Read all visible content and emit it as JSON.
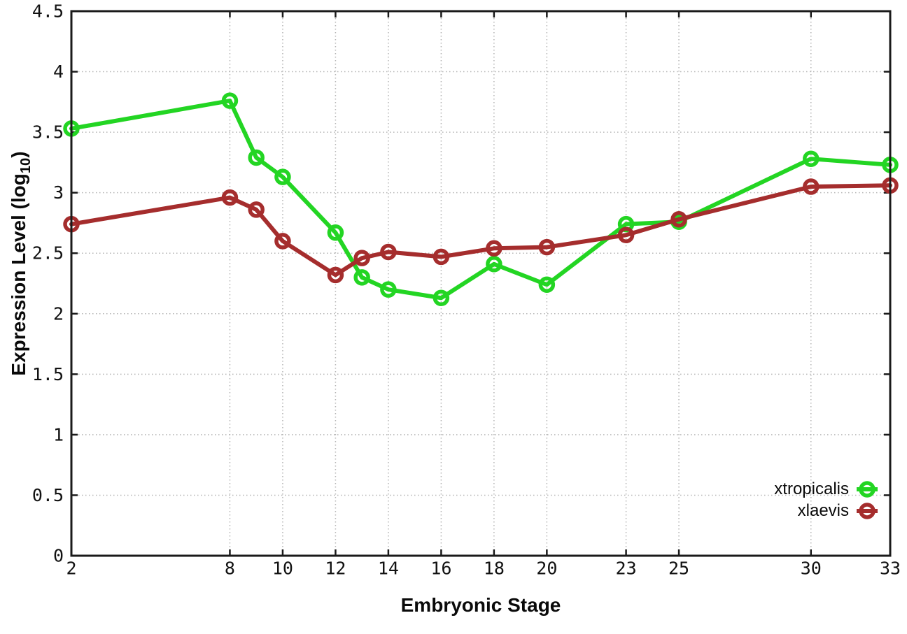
{
  "chart_data": {
    "type": "line",
    "title": "",
    "xlabel": "Embryonic Stage",
    "ylabel": {
      "prefix": "Expression Level (log",
      "sub": "10",
      "suffix": ")"
    },
    "xlim": [
      2,
      33
    ],
    "ylim": [
      0,
      4.5
    ],
    "grid": true,
    "legend_position": "bottom-right-inside",
    "x": [
      2,
      8,
      9,
      10,
      12,
      13,
      14,
      16,
      18,
      20,
      23,
      25,
      30,
      33
    ],
    "x_ticks": [
      2,
      8,
      10,
      12,
      14,
      16,
      18,
      20,
      23,
      25,
      30,
      33
    ],
    "x_tick_labels": [
      "2",
      "8",
      "10",
      "12",
      "14",
      "16",
      "18",
      "20",
      "23",
      "25",
      "30",
      "33"
    ],
    "y_ticks": [
      0,
      0.5,
      1,
      1.5,
      2,
      2.5,
      3,
      3.5,
      4,
      4.5
    ],
    "y_tick_labels": [
      "0",
      "0.5",
      "1",
      "1.5",
      "2",
      "2.5",
      "3",
      "3.5",
      "4",
      "4.5"
    ],
    "series": [
      {
        "name": "xtropicalis",
        "color": "#23d523",
        "values": [
          3.53,
          3.76,
          3.29,
          3.13,
          2.67,
          2.3,
          2.2,
          2.13,
          2.41,
          2.24,
          2.74,
          2.76,
          3.28,
          3.23
        ]
      },
      {
        "name": "xlaevis",
        "color": "#a52d2d",
        "values": [
          2.74,
          2.96,
          2.86,
          2.6,
          2.32,
          2.46,
          2.51,
          2.47,
          2.54,
          2.55,
          2.65,
          2.78,
          3.05,
          3.06
        ]
      }
    ],
    "style": {
      "background": "#ffffff",
      "grid_color": "#b5b5b5",
      "axis_color": "#1a1a1a",
      "tick_label_color": "#111111"
    }
  }
}
